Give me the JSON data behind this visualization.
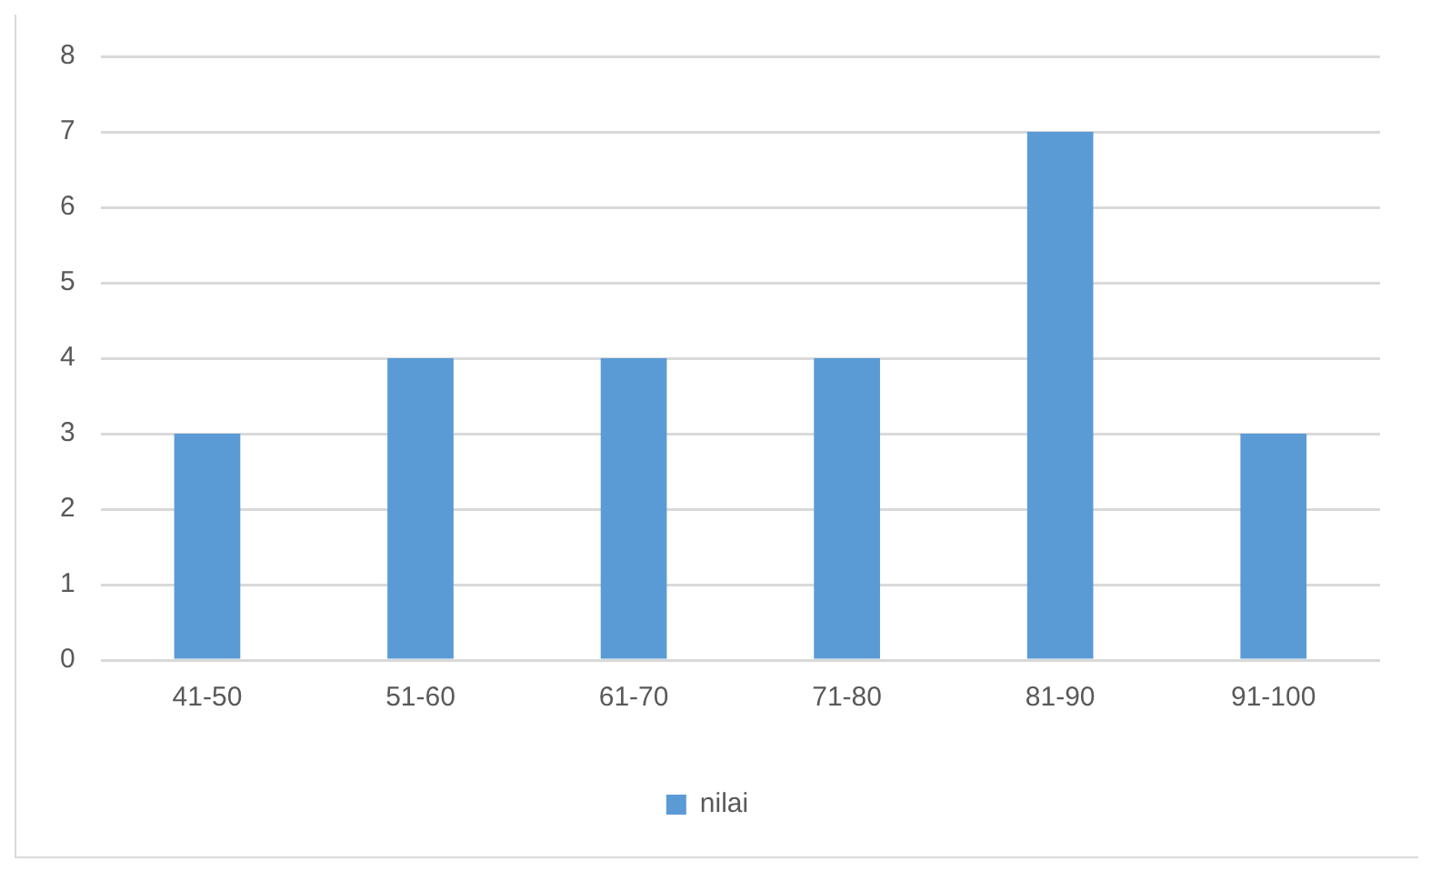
{
  "chart_data": {
    "type": "bar",
    "categories": [
      "41-50",
      "51-60",
      "61-70",
      "71-80",
      "81-90",
      "91-100"
    ],
    "series": [
      {
        "name": "nilai",
        "color": "#5b9bd5",
        "values": [
          3,
          4,
          4,
          4,
          7,
          3
        ]
      }
    ],
    "ylim": [
      0,
      8
    ],
    "yticks": [
      0,
      1,
      2,
      3,
      4,
      5,
      6,
      7,
      8
    ],
    "grid": "y",
    "legend": "bottom"
  }
}
